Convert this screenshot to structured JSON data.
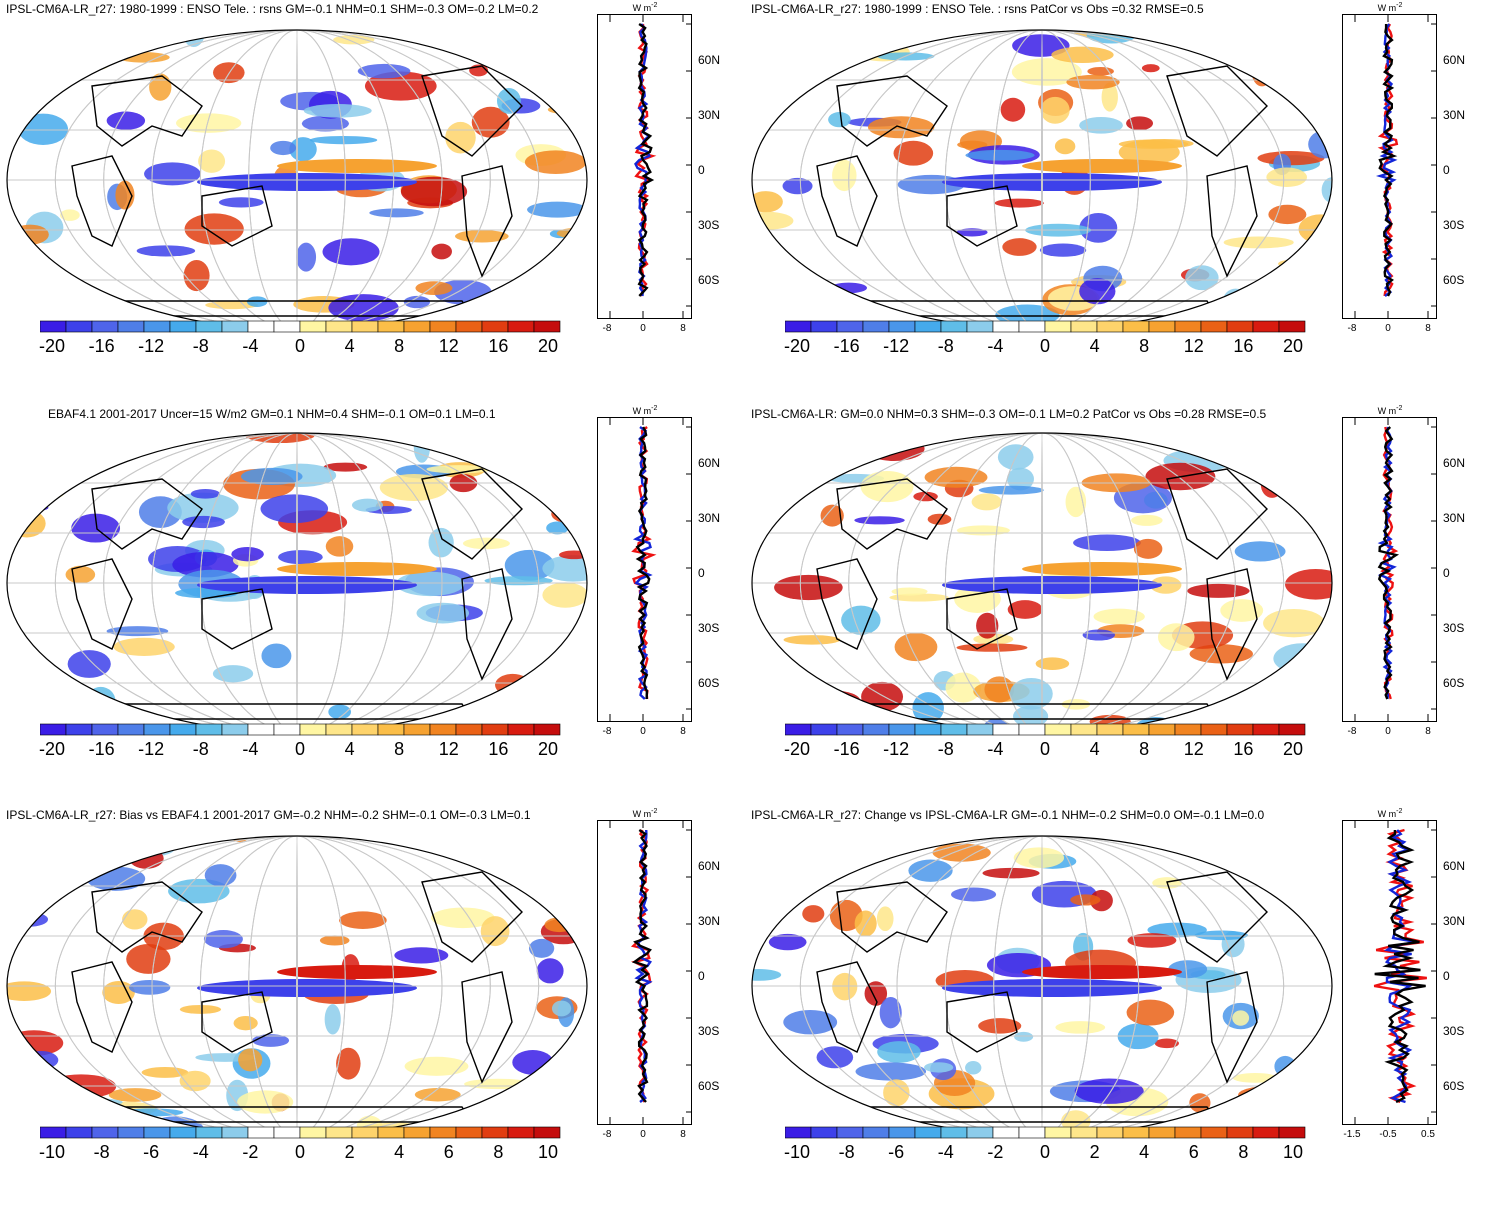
{
  "palette": [
    "#3a1de6",
    "#3d41ea",
    "#4f64ea",
    "#4f7ee8",
    "#4a96ea",
    "#45aaec",
    "#5fbde8",
    "#8ccceb",
    "#ffffff",
    "#ffffff",
    "#fff6a3",
    "#fee68a",
    "#fed36b",
    "#fbbe48",
    "#f6a231",
    "#f18421",
    "#ea6116",
    "#e13d11",
    "#d81b10",
    "#c50d0d"
  ],
  "panels": [
    {
      "title": "IPSL-CM6A-LR_r27: 1980-1999 : ENSO Tele. : rsns GM=-0.1 NHM=0.1 SHM=-0.3 OM=-0.2 LM=0.2",
      "cbar_labels": [
        "-20",
        "-16",
        "-12",
        "-8",
        "-4",
        "0",
        "4",
        "8",
        "12",
        "16",
        "20"
      ],
      "units": "W m",
      "units_sup": "-2",
      "profile_x_ticks": [
        "-8",
        "0",
        "8"
      ],
      "lat_ticks": [
        "60N",
        "30N",
        "0",
        "30S",
        "60S"
      ]
    },
    {
      "title": "IPSL-CM6A-LR_r27: 1980-1999 : ENSO Tele. : rsns PatCor vs Obs =0.32 RMSE=0.5",
      "cbar_labels": [
        "-20",
        "-16",
        "-12",
        "-8",
        "-4",
        "0",
        "4",
        "8",
        "12",
        "16",
        "20"
      ],
      "units": "W m",
      "units_sup": "-2",
      "profile_x_ticks": [
        "-8",
        "0",
        "8"
      ],
      "lat_ticks": [
        "60N",
        "30N",
        "0",
        "30S",
        "60S"
      ]
    },
    {
      "title": "EBAF4.1 2001-2017 Uncer=15 W/m2 GM=0.1 NHM=0.4 SHM=-0.1 OM=0.1 LM=0.1",
      "cbar_labels": [
        "-20",
        "-16",
        "-12",
        "-8",
        "-4",
        "0",
        "4",
        "8",
        "12",
        "16",
        "20"
      ],
      "units": "W m",
      "units_sup": "-2",
      "profile_x_ticks": [
        "-8",
        "0",
        "8"
      ],
      "lat_ticks": [
        "60N",
        "30N",
        "0",
        "30S",
        "60S"
      ]
    },
    {
      "title": "IPSL-CM6A-LR: GM=0.0 NHM=0.3 SHM=-0.3 OM=-0.1 LM=0.2 PatCor vs Obs =0.28 RMSE=0.5",
      "cbar_labels": [
        "-20",
        "-16",
        "-12",
        "-8",
        "-4",
        "0",
        "4",
        "8",
        "12",
        "16",
        "20"
      ],
      "units": "W m",
      "units_sup": "-2",
      "profile_x_ticks": [
        "-8",
        "0",
        "8"
      ],
      "lat_ticks": [
        "60N",
        "30N",
        "0",
        "30S",
        "60S"
      ]
    },
    {
      "title": "IPSL-CM6A-LR_r27: Bias vs EBAF4.1 2001-2017 GM=-0.2 NHM=-0.2 SHM=-0.1 OM=-0.3 LM=0.1",
      "cbar_labels": [
        "-10",
        "-8",
        "-6",
        "-4",
        "-2",
        "0",
        "2",
        "4",
        "6",
        "8",
        "10"
      ],
      "units": "W m",
      "units_sup": "-2",
      "profile_x_ticks": [
        "-8",
        "0",
        "8"
      ],
      "lat_ticks": [
        "60N",
        "30N",
        "0",
        "30S",
        "60S"
      ]
    },
    {
      "title": "IPSL-CM6A-LR_r27: Change vs IPSL-CM6A-LR GM=-0.1 NHM=-0.2 SHM=0.0 OM=-0.1 LM=0.0",
      "cbar_labels": [
        "-10",
        "-8",
        "-6",
        "-4",
        "-2",
        "0",
        "2",
        "4",
        "6",
        "8",
        "10"
      ],
      "units": "W m",
      "units_sup": "-2",
      "profile_x_ticks": [
        "-1.5",
        "-0.5",
        "0.5"
      ],
      "lat_ticks": [
        "60N",
        "30N",
        "0",
        "30S",
        "60S"
      ]
    }
  ],
  "chart_data": [
    {
      "type": "heatmap",
      "title": "IPSL-CM6A-LR_r27: 1980-1999 : ENSO Tele. : rsns GM=-0.1 NHM=0.1 SHM=-0.3 OM=-0.2 LM=0.2",
      "colorbar_range": [
        -20,
        20
      ],
      "colorbar_ticks": [
        -20,
        -16,
        -12,
        -8,
        -4,
        0,
        4,
        8,
        12,
        16,
        20
      ],
      "zonal_profile": {
        "xlim": [
          -10,
          10
        ],
        "ylim": [
          -90,
          90
        ],
        "x_ticks": [
          -8,
          0,
          8
        ]
      }
    },
    {
      "type": "heatmap",
      "title": "IPSL-CM6A-LR_r27: 1980-1999 : ENSO Tele. : rsns PatCor vs Obs =0.32 RMSE=0.5",
      "colorbar_range": [
        -20,
        20
      ],
      "colorbar_ticks": [
        -20,
        -16,
        -12,
        -8,
        -4,
        0,
        4,
        8,
        12,
        16,
        20
      ],
      "zonal_profile": {
        "xlim": [
          -10,
          10
        ],
        "ylim": [
          -90,
          90
        ],
        "x_ticks": [
          -8,
          0,
          8
        ]
      }
    },
    {
      "type": "heatmap",
      "title": "EBAF4.1 2001-2017 Uncer=15 W/m2 GM=0.1 NHM=0.4 SHM=-0.1 OM=0.1 LM=0.1",
      "colorbar_range": [
        -20,
        20
      ],
      "colorbar_ticks": [
        -20,
        -16,
        -12,
        -8,
        -4,
        0,
        4,
        8,
        12,
        16,
        20
      ],
      "zonal_profile": {
        "xlim": [
          -10,
          10
        ],
        "ylim": [
          -90,
          90
        ],
        "x_ticks": [
          -8,
          0,
          8
        ]
      }
    },
    {
      "type": "heatmap",
      "title": "IPSL-CM6A-LR: GM=0.0 NHM=0.3 SHM=-0.3 OM=-0.1 LM=0.2 PatCor vs Obs =0.28 RMSE=0.5",
      "colorbar_range": [
        -20,
        20
      ],
      "colorbar_ticks": [
        -20,
        -16,
        -12,
        -8,
        -4,
        0,
        4,
        8,
        12,
        16,
        20
      ],
      "zonal_profile": {
        "xlim": [
          -10,
          10
        ],
        "ylim": [
          -90,
          90
        ],
        "x_ticks": [
          -8,
          0,
          8
        ]
      }
    },
    {
      "type": "heatmap",
      "title": "IPSL-CM6A-LR_r27: Bias vs EBAF4.1 2001-2017 GM=-0.2 NHM=-0.2 SHM=-0.1 OM=-0.3 LM=0.1",
      "colorbar_range": [
        -10,
        10
      ],
      "colorbar_ticks": [
        -10,
        -8,
        -6,
        -4,
        -2,
        0,
        2,
        4,
        6,
        8,
        10
      ],
      "zonal_profile": {
        "xlim": [
          -10,
          10
        ],
        "ylim": [
          -90,
          90
        ],
        "x_ticks": [
          -8,
          0,
          8
        ]
      }
    },
    {
      "type": "heatmap",
      "title": "IPSL-CM6A-LR_r27: Change vs IPSL-CM6A-LR GM=-0.1 NHM=-0.2 SHM=0.0 OM=-0.1 LM=0.0",
      "colorbar_range": [
        -10,
        10
      ],
      "colorbar_ticks": [
        -10,
        -8,
        -6,
        -4,
        -2,
        0,
        2,
        4,
        6,
        8,
        10
      ],
      "zonal_profile": {
        "xlim": [
          -2,
          1
        ],
        "ylim": [
          -90,
          90
        ],
        "x_ticks": [
          -1.5,
          -0.5,
          0.5
        ]
      }
    }
  ]
}
